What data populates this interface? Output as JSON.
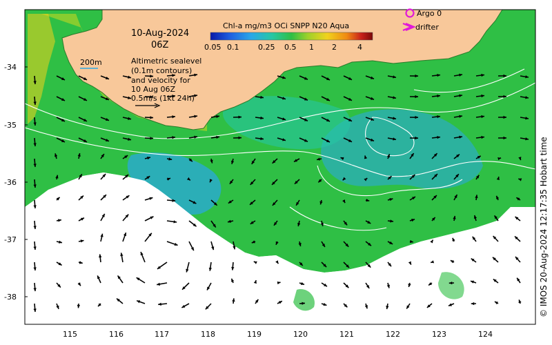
{
  "date": {
    "line1": "10-Aug-2024",
    "line2": "06Z"
  },
  "colorbar": {
    "title": "Chl-a mg/m3 OCi SNPP N20 Aqua",
    "ticks": [
      "0.05",
      "0.1",
      "0.25",
      "0.5",
      "1",
      "2",
      "4"
    ],
    "colors": [
      "#0a1aa8",
      "#1f5fe0",
      "#29a7e8",
      "#27c7a4",
      "#2fbf45",
      "#9ed12a",
      "#f1d21c",
      "#f08a12",
      "#c8201a",
      "#7a0a0a"
    ]
  },
  "legend": {
    "argo_label": "Argo 0",
    "drifter_label": "drifter",
    "argo_color": "#e01ad8",
    "drifter_color": "#e01ad8"
  },
  "scale": {
    "label": "200m"
  },
  "annotation": [
    "Altimetric sealevel",
    "(0.1m contours)",
    "and velocity for",
    "10 Aug 06Z",
    "0.5m/s (1kt 24h)"
  ],
  "credit": "© IMOS 20-Aug-2024 12:17:35 Hobart time",
  "axes": {
    "x_ticks": [
      "115",
      "116",
      "117",
      "118",
      "119",
      "120",
      "121",
      "122",
      "123",
      "124"
    ],
    "y_ticks": [
      "-34",
      "-35",
      "-36",
      "-37",
      "-38"
    ]
  },
  "colors": {
    "land": "#f8c89a",
    "ocean_green": "#2fbf45",
    "ocean_cyan": "#29a7e8",
    "contour": "#ffffff",
    "arrow": "#000000"
  }
}
